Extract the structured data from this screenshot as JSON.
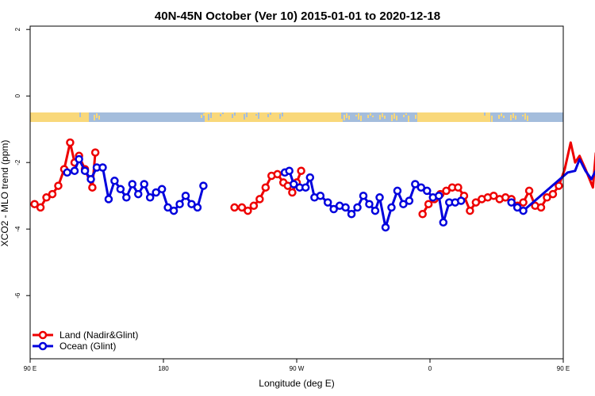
{
  "chart_data": {
    "type": "line",
    "title": "40N-45N October (Ver 10)   2015-01-01 to 2020-12-18",
    "xlabel": "Longitude (deg E)",
    "ylabel": "XCO2 - MLO trend (ppm)",
    "xlim": [
      90,
      450
    ],
    "ylim": [
      -7.9,
      2.1
    ],
    "x_ticks": [
      {
        "value": 90,
        "label": "90 E"
      },
      {
        "value": 180,
        "label": "180"
      },
      {
        "value": 270,
        "label": "90 W"
      },
      {
        "value": 360,
        "label": "0"
      },
      {
        "value": 450,
        "label": "90 E"
      },
      {
        "value": 540,
        "label": "180"
      }
    ],
    "y_ticks": [
      {
        "value": 2,
        "label": "2"
      },
      {
        "value": 0,
        "label": "0"
      },
      {
        "value": -2,
        "label": "-2"
      },
      {
        "value": -4,
        "label": "-4"
      },
      {
        "value": -6,
        "label": "-6"
      }
    ],
    "grid": false,
    "legend": "bottom-left",
    "land_mask_colors": {
      "land": "#f9d87a",
      "ocean": "#a4bddc"
    },
    "series": [
      {
        "name": "Land (Nadir&Glint)",
        "color": "#ee0000",
        "segments": [
          [
            [
              93,
              -3.25
            ],
            [
              97,
              -3.35
            ],
            [
              101,
              -3.05
            ],
            [
              105,
              -2.95
            ],
            [
              109,
              -2.7
            ],
            [
              113,
              -2.2
            ],
            [
              117,
              -1.4
            ],
            [
              120,
              -2.0
            ],
            [
              123,
              -1.8
            ],
            [
              127,
              -2.2
            ],
            [
              132,
              -2.75
            ],
            [
              134,
              -1.7
            ]
          ],
          [
            [
              228,
              -3.35
            ],
            [
              233,
              -3.35
            ],
            [
              237,
              -3.45
            ],
            [
              241,
              -3.3
            ],
            [
              245,
              -3.1
            ],
            [
              249,
              -2.75
            ],
            [
              253,
              -2.4
            ],
            [
              257,
              -2.35
            ],
            [
              261,
              -2.6
            ],
            [
              264,
              -2.7
            ],
            [
              267,
              -2.9
            ],
            [
              270,
              -2.6
            ],
            [
              273,
              -2.25
            ]
          ],
          [
            [
              355,
              -3.55
            ],
            [
              359,
              -3.25
            ],
            [
              363,
              -3.1
            ],
            [
              367,
              -2.95
            ],
            [
              371,
              -2.85
            ],
            [
              375,
              -2.75
            ],
            [
              379,
              -2.75
            ],
            [
              383,
              -3.0
            ],
            [
              387,
              -3.45
            ],
            [
              391,
              -3.2
            ],
            [
              395,
              -3.1
            ],
            [
              399,
              -3.05
            ],
            [
              403,
              -3.0
            ],
            [
              407,
              -3.1
            ],
            [
              411,
              -3.05
            ],
            [
              415,
              -3.1
            ],
            [
              419,
              -3.3
            ],
            [
              423,
              -3.2
            ],
            [
              427,
              -2.85
            ],
            [
              431,
              -3.3
            ],
            [
              435,
              -3.35
            ],
            [
              439,
              -3.05
            ],
            [
              443,
              -2.95
            ],
            [
              447,
              -2.7
            ],
            [
              451,
              -2.2
            ],
            [
              455,
              -1.4
            ],
            [
              458,
              -2.0
            ],
            [
              461,
              -1.8
            ],
            [
              465,
              -2.2
            ],
            [
              470,
              -2.75
            ],
            [
              472,
              -1.7
            ]
          ]
        ]
      },
      {
        "name": "Ocean (Glint)",
        "color": "#0000dd",
        "segments": [
          [
            [
              115,
              -2.3
            ],
            [
              120,
              -2.25
            ],
            [
              123,
              -1.9
            ],
            [
              127,
              -2.25
            ],
            [
              131,
              -2.5
            ],
            [
              135,
              -2.15
            ],
            [
              139,
              -2.15
            ],
            [
              143,
              -3.1
            ],
            [
              147,
              -2.55
            ],
            [
              151,
              -2.8
            ],
            [
              155,
              -3.05
            ],
            [
              159,
              -2.65
            ],
            [
              163,
              -2.95
            ],
            [
              167,
              -2.65
            ],
            [
              171,
              -3.05
            ],
            [
              175,
              -2.9
            ],
            [
              179,
              -2.8
            ],
            [
              183,
              -3.35
            ],
            [
              187,
              -3.45
            ],
            [
              191,
              -3.25
            ],
            [
              195,
              -3.0
            ],
            [
              199,
              -3.25
            ],
            [
              203,
              -3.35
            ],
            [
              207,
              -2.7
            ]
          ],
          [
            [
              262,
              -2.3
            ],
            [
              265,
              -2.25
            ],
            [
              268,
              -2.65
            ],
            [
              272,
              -2.75
            ],
            [
              276,
              -2.75
            ],
            [
              279,
              -2.45
            ],
            [
              282,
              -3.05
            ],
            [
              286,
              -3.0
            ],
            [
              291,
              -3.2
            ],
            [
              295,
              -3.4
            ],
            [
              299,
              -3.3
            ],
            [
              303,
              -3.35
            ],
            [
              307,
              -3.55
            ],
            [
              311,
              -3.35
            ],
            [
              315,
              -3.0
            ],
            [
              319,
              -3.25
            ],
            [
              323,
              -3.45
            ],
            [
              326,
              -3.05
            ],
            [
              330,
              -3.95
            ],
            [
              334,
              -3.35
            ],
            [
              338,
              -2.85
            ],
            [
              342,
              -3.25
            ],
            [
              346,
              -3.15
            ],
            [
              350,
              -2.65
            ],
            [
              354,
              -2.75
            ],
            [
              358,
              -2.85
            ],
            [
              362,
              -3.05
            ],
            [
              366,
              -3.0
            ],
            [
              369,
              -3.8
            ],
            [
              373,
              -3.2
            ],
            [
              377,
              -3.2
            ],
            [
              381,
              -3.15
            ]
          ],
          [
            [
              415,
              -3.2
            ],
            [
              419,
              -3.35
            ],
            [
              423,
              -3.45
            ],
            [
              453,
              -2.3
            ],
            [
              458,
              -2.25
            ],
            [
              461,
              -1.9
            ],
            [
              465,
              -2.25
            ],
            [
              469,
              -2.5
            ],
            [
              473,
              -2.15
            ],
            [
              477,
              -2.15
            ],
            [
              481,
              -3.1
            ],
            [
              485,
              -2.55
            ],
            [
              489,
              -2.8
            ],
            [
              493,
              -3.05
            ],
            [
              497,
              -2.65
            ]
          ]
        ]
      }
    ]
  }
}
